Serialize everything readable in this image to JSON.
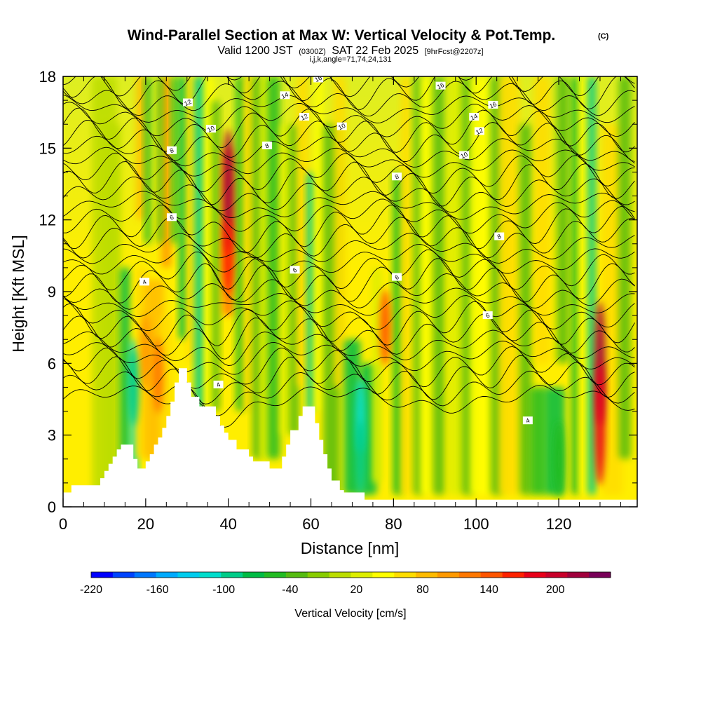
{
  "chart_data": {
    "type": "heatmap",
    "title": "Wind-Parallel Section at Max W: Vertical Velocity & Pot.Temp.",
    "copyright_mark": "(C)",
    "subtitle_parts": [
      "Valid 1200 JST",
      "(0300Z)",
      "SAT 22 Feb 2025",
      "[9hrFcst@2207z]"
    ],
    "subtitle2": "i,j,k,angle=71,74,24,131",
    "xlabel": "Distance [nm]",
    "ylabel": "Height [Kft MSL]",
    "xlim": [
      0,
      139
    ],
    "ylim": [
      0,
      18
    ],
    "x_ticks": [
      0,
      20,
      40,
      60,
      80,
      100,
      120
    ],
    "y_ticks": [
      0,
      3,
      6,
      9,
      12,
      15,
      18
    ],
    "grid": false,
    "colorbar": {
      "label": "Vertical Velocity [cm/s]",
      "tick_labels": [
        "-220",
        "-160",
        "-100",
        "-40",
        "20",
        "80",
        "140",
        "200"
      ],
      "tick_values": [
        -220,
        -160,
        -100,
        -40,
        20,
        80,
        140,
        200
      ],
      "min": -220,
      "max": 250,
      "colors": [
        "#0000ff",
        "#0044ff",
        "#0077ff",
        "#00aaff",
        "#00ccee",
        "#00ddcc",
        "#00cc88",
        "#00bb44",
        "#22bb22",
        "#55bb11",
        "#88cc00",
        "#bbdd00",
        "#ddee00",
        "#ffff00",
        "#ffdd00",
        "#ffbb00",
        "#ff9900",
        "#ff7700",
        "#ff5500",
        "#ff2200",
        "#e8001a",
        "#c8002a",
        "#a0003c",
        "#780058"
      ]
    },
    "terrain_profile": [
      [
        0,
        0.6
      ],
      [
        2,
        0.6
      ],
      [
        2,
        0.9
      ],
      [
        6,
        0.9
      ],
      [
        6,
        0.9
      ],
      [
        9,
        0.9
      ],
      [
        9,
        1.2
      ],
      [
        10,
        1.2
      ],
      [
        10,
        1.5
      ],
      [
        11,
        1.5
      ],
      [
        11,
        1.8
      ],
      [
        12,
        1.8
      ],
      [
        12,
        2.1
      ],
      [
        13,
        2.1
      ],
      [
        13,
        2.4
      ],
      [
        14,
        2.4
      ],
      [
        14,
        2.6
      ],
      [
        17,
        2.6
      ],
      [
        17,
        2.0
      ],
      [
        18,
        2.0
      ],
      [
        18,
        1.6
      ],
      [
        20,
        1.6
      ],
      [
        20,
        1.9
      ],
      [
        21,
        1.9
      ],
      [
        21,
        2.2
      ],
      [
        22,
        2.2
      ],
      [
        22,
        2.6
      ],
      [
        23,
        2.6
      ],
      [
        23,
        2.9
      ],
      [
        24,
        2.9
      ],
      [
        24,
        3.3
      ],
      [
        25,
        3.3
      ],
      [
        25,
        3.8
      ],
      [
        26,
        3.8
      ],
      [
        26,
        4.4
      ],
      [
        27,
        4.4
      ],
      [
        27,
        5.2
      ],
      [
        28,
        5.2
      ],
      [
        28,
        5.8
      ],
      [
        30,
        5.8
      ],
      [
        30,
        5.2
      ],
      [
        31,
        5.2
      ],
      [
        31,
        4.6
      ],
      [
        33,
        4.6
      ],
      [
        33,
        4.2
      ],
      [
        37,
        4.2
      ],
      [
        37,
        3.8
      ],
      [
        38,
        3.8
      ],
      [
        38,
        3.4
      ],
      [
        39,
        3.4
      ],
      [
        39,
        3.1
      ],
      [
        40,
        3.1
      ],
      [
        40,
        2.8
      ],
      [
        42,
        2.8
      ],
      [
        42,
        2.4
      ],
      [
        45,
        2.4
      ],
      [
        45,
        2.1
      ],
      [
        46,
        2.1
      ],
      [
        46,
        1.9
      ],
      [
        50,
        1.9
      ],
      [
        50,
        1.6
      ],
      [
        53,
        1.6
      ],
      [
        53,
        2.1
      ],
      [
        54,
        2.1
      ],
      [
        54,
        2.6
      ],
      [
        55,
        2.6
      ],
      [
        55,
        3.2
      ],
      [
        57,
        3.2
      ],
      [
        57,
        3.8
      ],
      [
        58,
        3.8
      ],
      [
        58,
        4.2
      ],
      [
        61,
        4.2
      ],
      [
        61,
        3.5
      ],
      [
        62,
        3.5
      ],
      [
        62,
        2.8
      ],
      [
        63,
        2.8
      ],
      [
        63,
        2.2
      ],
      [
        64,
        2.2
      ],
      [
        64,
        1.6
      ],
      [
        65,
        1.6
      ],
      [
        65,
        1.1
      ],
      [
        67,
        1.1
      ],
      [
        67,
        0.7
      ],
      [
        68,
        0.7
      ],
      [
        68,
        0.6
      ],
      [
        73,
        0.6
      ],
      [
        73,
        0.3
      ],
      [
        139,
        0.3
      ]
    ],
    "updraft_cores": [
      {
        "x": 20,
        "y": 6.5,
        "value": 110
      },
      {
        "x": 23,
        "y": 5.5,
        "value": 120
      },
      {
        "x": 40,
        "y": 13.2,
        "value": 220
      },
      {
        "x": 40,
        "y": 10.5,
        "value": 160
      },
      {
        "x": 78,
        "y": 7.5,
        "value": 150
      },
      {
        "x": 130,
        "y": 6.0,
        "value": 230
      },
      {
        "x": 130,
        "y": 3.5,
        "value": 180
      }
    ],
    "downdraft_cores": [
      {
        "x": 72,
        "y": 3.8,
        "value": -110
      },
      {
        "x": 72,
        "y": 2.0,
        "value": -90
      },
      {
        "x": 17,
        "y": 5.0,
        "value": -90
      },
      {
        "x": 120,
        "y": 2.0,
        "value": -60
      }
    ],
    "contour_labels": [
      {
        "text": "4",
        "x": 19.7,
        "y": 9.4
      },
      {
        "text": "6",
        "x": 26.3,
        "y": 12.1
      },
      {
        "text": "8",
        "x": 26.3,
        "y": 14.9
      },
      {
        "text": "10",
        "x": 35.8,
        "y": 15.8
      },
      {
        "text": "12",
        "x": 30.2,
        "y": 16.9
      },
      {
        "text": "4",
        "x": 37.6,
        "y": 5.1
      },
      {
        "text": "6",
        "x": 56.1,
        "y": 9.9
      },
      {
        "text": "8",
        "x": 49.4,
        "y": 15.1
      },
      {
        "text": "12",
        "x": 58.4,
        "y": 16.3
      },
      {
        "text": "14",
        "x": 53.7,
        "y": 17.2
      },
      {
        "text": "16",
        "x": 61.8,
        "y": 17.9
      },
      {
        "text": "10",
        "x": 67.5,
        "y": 15.9
      },
      {
        "text": "6",
        "x": 80.8,
        "y": 9.6
      },
      {
        "text": "8",
        "x": 80.8,
        "y": 13.8
      },
      {
        "text": "16",
        "x": 91.4,
        "y": 17.6
      },
      {
        "text": "16",
        "x": 104.1,
        "y": 16.8
      },
      {
        "text": "14",
        "x": 99.5,
        "y": 16.3
      },
      {
        "text": "12",
        "x": 100.8,
        "y": 15.7
      },
      {
        "text": "10",
        "x": 97.1,
        "y": 14.7
      },
      {
        "text": "8",
        "x": 105.6,
        "y": 11.3
      },
      {
        "text": "6",
        "x": 102.8,
        "y": 8.0
      },
      {
        "text": "4",
        "x": 112.5,
        "y": 3.6
      }
    ]
  }
}
